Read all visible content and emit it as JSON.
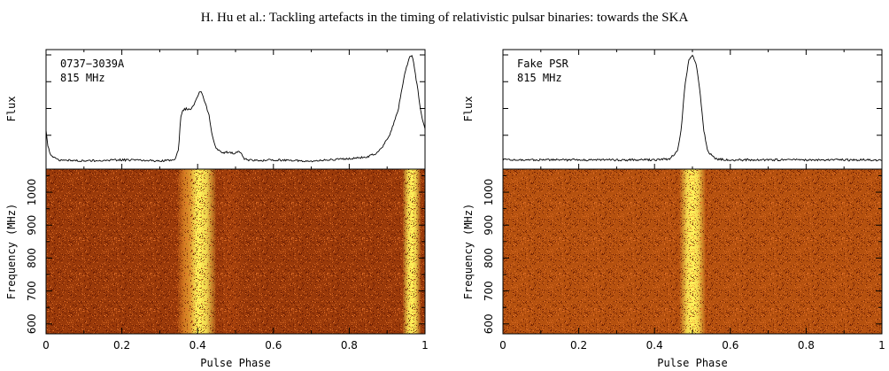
{
  "header": "H. Hu et al.: Tackling artefacts in the timing of relativistic pulsar binaries: towards the SKA",
  "chart_data": [
    {
      "type": "line+heatmap",
      "annotation_line1": "0737−3039A",
      "annotation_line2": "815 MHz",
      "profile_ylabel": "Flux",
      "heatmap_ylabel": "Frequency (MHz)",
      "xlabel": "Pulse Phase",
      "xlim": [
        0,
        1
      ],
      "ylim_freq": [
        570,
        1070
      ],
      "xticks": [
        "0",
        "0.2",
        "0.4",
        "0.6",
        "0.8",
        "1"
      ],
      "yticks": [
        "600",
        "700",
        "800",
        "900",
        "1000"
      ],
      "profile": {
        "x": [
          0,
          0.005,
          0.015,
          0.03,
          0.05,
          0.1,
          0.2,
          0.3,
          0.34,
          0.35,
          0.355,
          0.36,
          0.37,
          0.38,
          0.39,
          0.4,
          0.405,
          0.41,
          0.415,
          0.42,
          0.43,
          0.44,
          0.45,
          0.46,
          0.47,
          0.48,
          0.5,
          0.51,
          0.515,
          0.52,
          0.53,
          0.56,
          0.6,
          0.7,
          0.8,
          0.85,
          0.87,
          0.89,
          0.91,
          0.93,
          0.94,
          0.95,
          0.96,
          0.965,
          0.97,
          0.98,
          0.99,
          1.0
        ],
        "y": [
          0.3,
          0.14,
          0.05,
          0.02,
          0.02,
          0.01,
          0.02,
          0.01,
          0.02,
          0.12,
          0.42,
          0.48,
          0.5,
          0.49,
          0.53,
          0.62,
          0.66,
          0.65,
          0.6,
          0.55,
          0.44,
          0.22,
          0.12,
          0.1,
          0.09,
          0.09,
          0.08,
          0.1,
          0.09,
          0.04,
          0.02,
          0.01,
          0.02,
          0.01,
          0.03,
          0.05,
          0.08,
          0.15,
          0.28,
          0.5,
          0.7,
          0.88,
          0.98,
          1.0,
          0.92,
          0.7,
          0.45,
          0.3
        ]
      },
      "heatmap_bands": [
        {
          "center": 0.405,
          "width": 0.045,
          "intensity": 1.0
        },
        {
          "center": 0.37,
          "width": 0.025,
          "intensity": 0.55
        },
        {
          "center": 0.49,
          "width": 0.03,
          "intensity": 0.25
        },
        {
          "center": 0.965,
          "width": 0.025,
          "intensity": 1.0
        }
      ]
    },
    {
      "type": "line+heatmap",
      "annotation_line1": "Fake PSR",
      "annotation_line2": "815 MHz",
      "profile_ylabel": "Flux",
      "heatmap_ylabel": "Frequency (MHz)",
      "xlabel": "Pulse Phase",
      "xlim": [
        0,
        1
      ],
      "ylim_freq": [
        570,
        1070
      ],
      "xticks": [
        "0",
        "0.2",
        "0.4",
        "0.6",
        "0.8",
        "1"
      ],
      "yticks": [
        "600",
        "700",
        "800",
        "900",
        "1000"
      ],
      "profile": {
        "x": [
          0,
          0.1,
          0.2,
          0.3,
          0.4,
          0.44,
          0.46,
          0.47,
          0.48,
          0.49,
          0.5,
          0.51,
          0.52,
          0.53,
          0.54,
          0.56,
          0.6,
          0.7,
          0.8,
          0.9,
          1.0
        ],
        "y": [
          0.02,
          0.02,
          0.02,
          0.02,
          0.02,
          0.03,
          0.1,
          0.3,
          0.7,
          0.95,
          1.0,
          0.92,
          0.65,
          0.3,
          0.1,
          0.03,
          0.02,
          0.02,
          0.02,
          0.02,
          0.02
        ]
      },
      "heatmap_bands": [
        {
          "center": 0.5,
          "width": 0.035,
          "intensity": 1.0
        }
      ]
    }
  ]
}
